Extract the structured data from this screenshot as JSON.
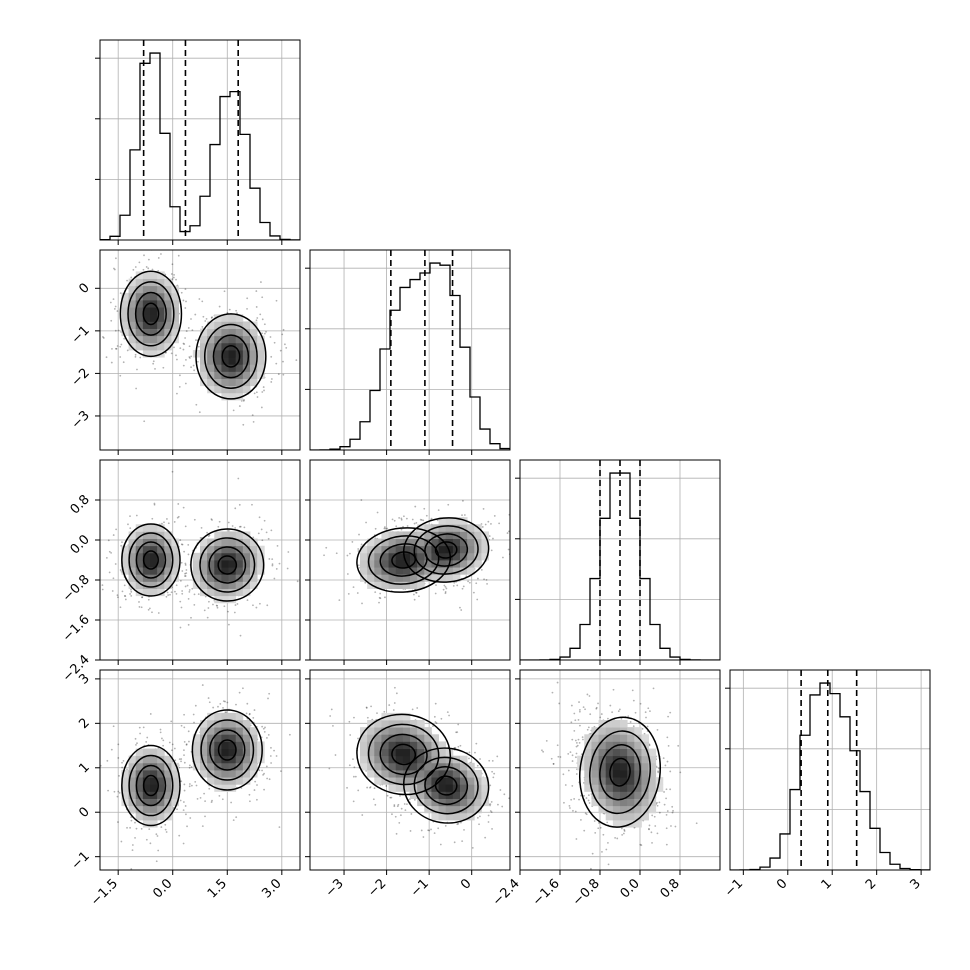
{
  "chart_data": {
    "type": "corner",
    "grid": true,
    "dimensions": [
      {
        "range": [
          -2.0,
          3.5
        ],
        "ticks": [
          -1.5,
          0.0,
          1.5,
          3.0
        ],
        "tick_labels": [
          "−1.5",
          "0.0",
          "1.5",
          "3.0"
        ],
        "y_tick_labels": [],
        "modes": [
          {
            "mean": -0.6,
            "sd": 0.35,
            "w": 0.5
          },
          {
            "mean": 1.6,
            "sd": 0.45,
            "w": 0.5
          }
        ],
        "quantiles": [
          -0.8,
          0.35,
          1.8
        ]
      },
      {
        "range": [
          -3.8,
          0.9
        ],
        "ticks": [
          -3,
          -2,
          -1,
          0
        ],
        "tick_labels": [
          "−3",
          "−2",
          "−1",
          "0"
        ],
        "y_tick_labels": [
          "−3",
          "−2",
          "−1",
          "0"
        ],
        "modes": [
          {
            "mean": -0.6,
            "sd": 0.45,
            "w": 0.5
          },
          {
            "mean": -1.6,
            "sd": 0.5,
            "w": 0.5
          }
        ],
        "quantiles": [
          -1.9,
          -1.1,
          -0.45
        ]
      },
      {
        "range": [
          -2.4,
          1.6
        ],
        "ticks": [
          -2.4,
          -1.6,
          -0.8,
          0.0,
          0.8
        ],
        "tick_labels": [
          "−2.4",
          "−1.6",
          "−0.8",
          "0.0",
          "0.8"
        ],
        "y_tick_labels": [
          "−2.4",
          "−1.6",
          "−0.8",
          "0.0",
          "0.8"
        ],
        "modes": [
          {
            "mean": -0.4,
            "sd": 0.38,
            "w": 1.0
          }
        ],
        "quantiles": [
          -0.8,
          -0.4,
          0.0
        ]
      },
      {
        "range": [
          -1.3,
          3.2
        ],
        "ticks": [
          -1,
          0,
          1,
          2,
          3
        ],
        "tick_labels": [
          "−1",
          "0",
          "1",
          "2",
          "3"
        ],
        "y_tick_labels": [
          "−1",
          "0",
          "1",
          "2",
          "3"
        ],
        "modes": [
          {
            "mean": 0.6,
            "sd": 0.4,
            "w": 0.5
          },
          {
            "mean": 1.3,
            "sd": 0.45,
            "w": 0.5
          }
        ],
        "quantiles": [
          0.3,
          0.9,
          1.55
        ]
      }
    ],
    "pairs": [
      {
        "row": 1,
        "col": 0,
        "blobs": [
          {
            "cx": -0.6,
            "cy": -0.6,
            "sx": 0.42,
            "sy": 0.5,
            "rho": 0.0
          },
          {
            "cx": 1.6,
            "cy": -1.6,
            "sx": 0.48,
            "sy": 0.5,
            "rho": 0.0
          }
        ]
      },
      {
        "row": 2,
        "col": 0,
        "blobs": [
          {
            "cx": -0.6,
            "cy": -0.4,
            "sx": 0.4,
            "sy": 0.36,
            "rho": 0.0
          },
          {
            "cx": 1.5,
            "cy": -0.5,
            "sx": 0.5,
            "sy": 0.36,
            "rho": 0.1
          }
        ]
      },
      {
        "row": 2,
        "col": 1,
        "blobs": [
          {
            "cx": -1.6,
            "cy": -0.4,
            "sx": 0.55,
            "sy": 0.32,
            "rho": 0.15
          },
          {
            "cx": -0.6,
            "cy": -0.2,
            "sx": 0.5,
            "sy": 0.32,
            "rho": 0.15
          }
        ]
      },
      {
        "row": 3,
        "col": 0,
        "blobs": [
          {
            "cx": -0.6,
            "cy": 0.6,
            "sx": 0.4,
            "sy": 0.45,
            "rho": 0.0
          },
          {
            "cx": 1.5,
            "cy": 1.4,
            "sx": 0.48,
            "sy": 0.45,
            "rho": 0.0
          }
        ]
      },
      {
        "row": 3,
        "col": 1,
        "blobs": [
          {
            "cx": -1.6,
            "cy": 1.3,
            "sx": 0.55,
            "sy": 0.45,
            "rho": -0.2
          },
          {
            "cx": -0.6,
            "cy": 0.6,
            "sx": 0.5,
            "sy": 0.42,
            "rho": -0.25
          }
        ]
      },
      {
        "row": 3,
        "col": 2,
        "blobs": [
          {
            "cx": -0.4,
            "cy": 0.9,
            "sx": 0.4,
            "sy": 0.62,
            "rho": -0.2
          }
        ]
      }
    ]
  }
}
